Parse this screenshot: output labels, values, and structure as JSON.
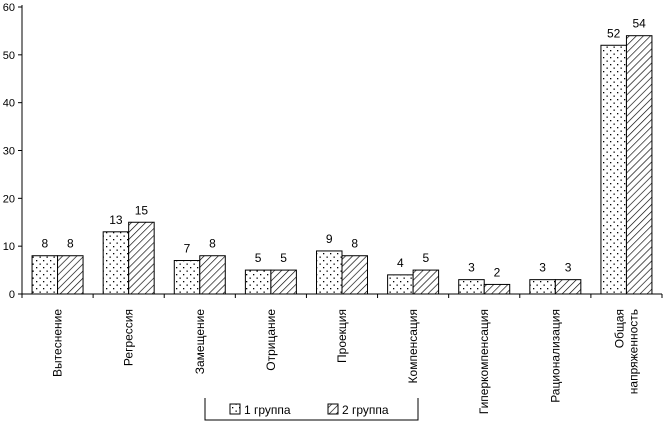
{
  "chart_data": {
    "type": "bar",
    "categories": [
      "Вытеснение",
      "Регрессия",
      "Замещение",
      "Отрицание",
      "Проекция",
      "Компенсация",
      "Гиперкомпенсация",
      "Рационализация",
      "Общая напряженность"
    ],
    "category_lines": [
      [
        "Вытеснение"
      ],
      [
        "Регрессия"
      ],
      [
        "Замещение"
      ],
      [
        "Отрицание"
      ],
      [
        "Проекция"
      ],
      [
        "Компенсация"
      ],
      [
        "Гиперкомпенсация"
      ],
      [
        "Рационализация"
      ],
      [
        "Общая",
        "напряженность"
      ]
    ],
    "series": [
      {
        "name": "1 группа",
        "pattern": "dots",
        "values": [
          8,
          13,
          7,
          5,
          9,
          4,
          3,
          3,
          52
        ]
      },
      {
        "name": "2 группа",
        "pattern": "hatch",
        "values": [
          8,
          15,
          8,
          5,
          8,
          5,
          2,
          3,
          54
        ]
      }
    ],
    "yticks": [
      "0",
      "10",
      "20",
      "30",
      "40",
      "50",
      "60"
    ],
    "ylim": [
      0,
      60
    ],
    "title": "",
    "xlabel": "",
    "ylabel": "",
    "legend_position": "bottom-center",
    "grid": false,
    "colors": {
      "stroke": "#000000",
      "background": "#ffffff"
    }
  }
}
